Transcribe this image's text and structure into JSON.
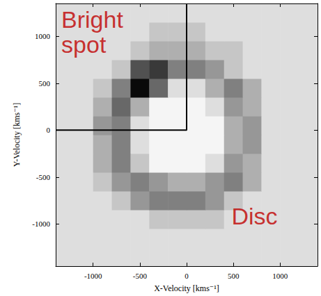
{
  "chart_data": {
    "type": "heatmap",
    "x_label": "X-Velocity [kms⁻¹]",
    "y_label": "Y-Velocity [kms⁻¹]",
    "x": [
      -1300,
      -1100,
      -900,
      -700,
      -500,
      -300,
      -100,
      100,
      300,
      500,
      700,
      900,
      1100,
      1300
    ],
    "y": [
      -1350,
      -1150,
      -950,
      -750,
      -550,
      -350,
      -150,
      50,
      250,
      450,
      650,
      850,
      1050,
      1250
    ],
    "cells": [
      [
        1,
        1,
        1,
        1,
        1,
        1,
        1,
        1,
        1,
        1,
        1,
        1,
        1,
        1
      ],
      [
        1,
        1,
        1,
        1,
        1,
        1,
        1,
        1,
        1,
        1,
        1,
        1,
        1,
        1
      ],
      [
        1,
        1,
        1,
        1,
        1,
        2,
        2,
        2,
        2,
        1,
        1,
        1,
        1,
        1
      ],
      [
        1,
        1,
        1,
        2,
        4,
        5,
        5,
        5,
        4,
        2,
        1,
        1,
        1,
        1
      ],
      [
        1,
        1,
        2,
        4,
        5,
        4,
        3,
        3,
        4,
        5,
        3,
        1,
        1,
        1
      ],
      [
        1,
        1,
        3,
        5,
        2,
        0,
        0,
        0,
        1,
        4,
        3,
        1,
        1,
        1
      ],
      [
        1,
        1,
        3,
        5,
        1,
        0,
        0,
        0,
        0,
        3,
        4,
        1,
        1,
        1
      ],
      [
        1,
        1,
        4,
        5,
        1,
        0,
        0,
        0,
        0,
        3,
        4,
        1,
        1,
        1
      ],
      [
        1,
        1,
        3,
        6,
        3,
        0,
        0,
        0,
        1,
        4,
        3,
        1,
        1,
        1
      ],
      [
        1,
        1,
        2,
        5,
        10,
        6,
        1,
        1,
        3,
        5,
        3,
        1,
        1,
        1
      ],
      [
        1,
        1,
        1,
        2,
        7,
        8,
        5,
        5,
        4,
        2,
        1,
        1,
        1,
        1
      ],
      [
        1,
        1,
        1,
        1,
        2,
        3,
        3,
        3,
        2,
        2,
        1,
        1,
        1,
        1
      ],
      [
        1,
        1,
        1,
        1,
        1,
        2,
        2,
        2,
        1,
        1,
        1,
        1,
        1,
        1
      ],
      [
        1,
        1,
        1,
        1,
        1,
        1,
        1,
        1,
        1,
        1,
        1,
        1,
        1,
        1
      ]
    ],
    "zlim": [
      0,
      10
    ],
    "xlim": [
      -1400,
      1400
    ],
    "ylim": [
      -1450,
      1350
    ],
    "xticks": [
      -1000,
      -500,
      0,
      500,
      1000
    ],
    "yticks": [
      -1000,
      -500,
      0,
      500,
      1000
    ],
    "boundary": {
      "points": [
        [
          -1400,
          0
        ],
        [
          0,
          0
        ],
        [
          0,
          1350
        ]
      ],
      "color": "#000000"
    },
    "annotations": [
      {
        "text": "Bright spot",
        "x": -1340,
        "y": 1310,
        "color": "#c00000"
      },
      {
        "text": "Disc",
        "x": 480,
        "y": -780,
        "color": "#c00000"
      }
    ]
  }
}
